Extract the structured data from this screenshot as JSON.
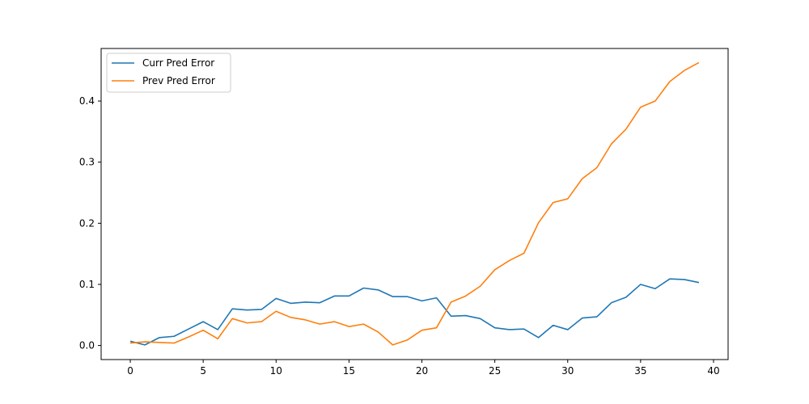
{
  "chart_data": {
    "type": "line",
    "title": "",
    "xlabel": "",
    "ylabel": "",
    "xlim": [
      -2,
      41
    ],
    "ylim": [
      -0.023,
      0.486
    ],
    "x_ticks": [
      0,
      5,
      10,
      15,
      20,
      25,
      30,
      35,
      40
    ],
    "y_ticks": [
      0.0,
      0.1,
      0.2,
      0.3,
      0.4
    ],
    "x_tick_labels": [
      "0",
      "5",
      "10",
      "15",
      "20",
      "25",
      "30",
      "35",
      "40"
    ],
    "y_tick_labels": [
      "0.0",
      "0.1",
      "0.2",
      "0.3",
      "0.4"
    ],
    "grid": false,
    "legend_position": "upper-left",
    "x": [
      0,
      1,
      2,
      3,
      4,
      5,
      6,
      7,
      8,
      9,
      10,
      11,
      12,
      13,
      14,
      15,
      16,
      17,
      18,
      19,
      20,
      21,
      22,
      23,
      24,
      25,
      26,
      27,
      28,
      29,
      30,
      31,
      32,
      33,
      34,
      35,
      36,
      37,
      38,
      39
    ],
    "series": [
      {
        "name": "Curr Pred Error",
        "color": "#1f77b4",
        "values": [
          0.007,
          0.001,
          0.013,
          0.015,
          0.027,
          0.039,
          0.026,
          0.06,
          0.058,
          0.059,
          0.077,
          0.069,
          0.071,
          0.07,
          0.081,
          0.081,
          0.094,
          0.091,
          0.08,
          0.08,
          0.073,
          0.078,
          0.048,
          0.049,
          0.044,
          0.029,
          0.026,
          0.027,
          0.013,
          0.033,
          0.026,
          0.045,
          0.047,
          0.07,
          0.079,
          0.1,
          0.093,
          0.109,
          0.108,
          0.103
        ]
      },
      {
        "name": "Prev Pred Error",
        "color": "#ff7f0e",
        "values": [
          0.004,
          0.006,
          0.005,
          0.004,
          0.014,
          0.025,
          0.011,
          0.044,
          0.037,
          0.039,
          0.056,
          0.046,
          0.042,
          0.035,
          0.039,
          0.031,
          0.035,
          0.022,
          0.001,
          0.009,
          0.025,
          0.029,
          0.071,
          0.081,
          0.097,
          0.124,
          0.139,
          0.151,
          0.201,
          0.234,
          0.24,
          0.273,
          0.291,
          0.33,
          0.354,
          0.39,
          0.4,
          0.432,
          0.45,
          0.463
        ]
      }
    ]
  }
}
